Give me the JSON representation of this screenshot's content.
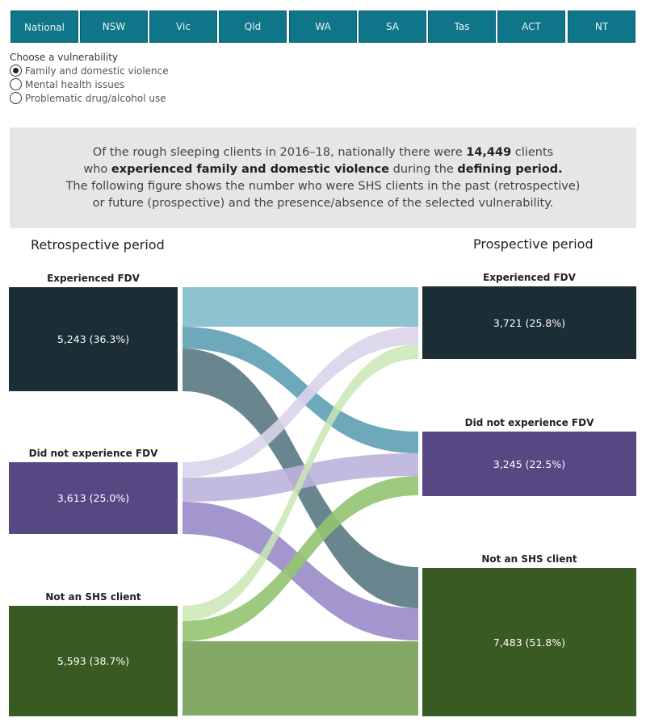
{
  "tabs": [
    "National",
    "NSW",
    "Vic",
    "Qld",
    "WA",
    "SA",
    "Tas",
    "ACT",
    "NT"
  ],
  "active_tab": "National",
  "vulnerability": {
    "title": "Choose a vulnerability",
    "options": [
      "Family and domestic violence",
      "Mental health issues",
      "Problematic drug/alcohol use"
    ],
    "selected": "Family and domestic violence"
  },
  "summary": {
    "l1a": "Of the rough sleeping clients in 2016–18, nationally there were ",
    "l1b": "14,449",
    "l1c": " clients",
    "l2a": "who ",
    "l2b": "experienced family and domestic violence",
    "l2c": " during the ",
    "l2d": "defining period.",
    "l3": "The following figure shows the number who were SHS clients in the past (retrospective)",
    "l4": "or future (prospective) and the presence/absence of the selected vulnerability."
  },
  "retro_title": "Retrospective period",
  "pro_title": "Prospective period",
  "retrospective": [
    {
      "label": "Experienced FDV",
      "value": "5,243 (36.3%)",
      "color": "#1b2e35"
    },
    {
      "label": "Did not experience FDV",
      "value": "3,613 (25.0%)",
      "color": "#574884"
    },
    {
      "label": "Not an SHS client",
      "value": "5,593 (38.7%)",
      "color": "#3a5a24"
    }
  ],
  "prospective": [
    {
      "label": "Experienced FDV",
      "value": "3,721 (25.8%)",
      "color": "#1b2e35"
    },
    {
      "label": "Did not experience FDV",
      "value": "3,245 (22.5%)",
      "color": "#574884"
    },
    {
      "label": "Not an SHS client",
      "value": "7,483 (51.8%)",
      "color": "#3a5a24"
    }
  ]
}
